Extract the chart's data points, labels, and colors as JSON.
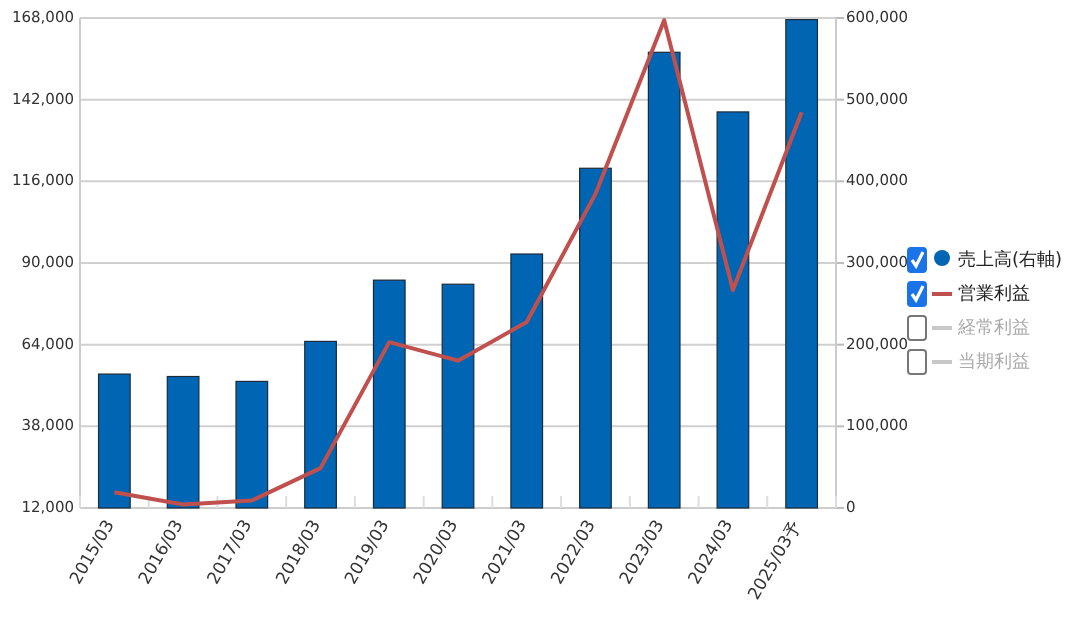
{
  "chart_data": {
    "type": "bar",
    "categories": [
      "2015/03",
      "2016/03",
      "2017/03",
      "2018/03",
      "2019/03",
      "2020/03",
      "2021/03",
      "2022/03",
      "2023/03",
      "2024/03",
      "2025/03予"
    ],
    "series": [
      {
        "name": "売上高(右軸)",
        "axis": "y2",
        "color": "#0066b3",
        "values": [
          164000,
          161000,
          155000,
          204000,
          279000,
          274000,
          311000,
          416000,
          558000,
          485000,
          598000
        ]
      },
      {
        "name": "営業利益",
        "type": "line",
        "color": "#c0504d",
        "values": [
          17000,
          13100,
          14400,
          24700,
          64800,
          58900,
          71200,
          112000,
          167300,
          81400,
          138000
        ]
      },
      {
        "name": "経常利益",
        "type": "line",
        "color": "#c8c8c8",
        "values": [
          null,
          null,
          null,
          null,
          null,
          null,
          null,
          null,
          null,
          null,
          null
        ]
      },
      {
        "name": "当期利益",
        "type": "line",
        "color": "#c8c8c8",
        "values": [
          null,
          null,
          null,
          null,
          null,
          null,
          null,
          null,
          null,
          null,
          null
        ]
      }
    ],
    "ylim": [
      12000,
      168000
    ],
    "yticks": [
      {
        "value": 12000,
        "label": "12,000"
      },
      {
        "value": 38000,
        "label": "38,000"
      },
      {
        "value": 64000,
        "label": "64,000"
      },
      {
        "value": 90000,
        "label": "90,000"
      },
      {
        "value": 116000,
        "label": "116,000"
      },
      {
        "value": 142000,
        "label": "142,000"
      },
      {
        "value": 168000,
        "label": "168,000"
      }
    ],
    "y2lim": [
      0,
      600000
    ],
    "y2ticks": [
      0,
      {
        "value": 100000,
        "label": "100,000"
      },
      {
        "value": 200000,
        "label": "200,000"
      },
      {
        "value": 300000,
        "label": "300,000"
      },
      {
        "value": 400000,
        "label": "400,000"
      },
      {
        "value": 500000,
        "label": "500,000"
      },
      {
        "value": 600000,
        "label": "600,000"
      }
    ],
    "grid": "y",
    "legend": "right"
  }
}
